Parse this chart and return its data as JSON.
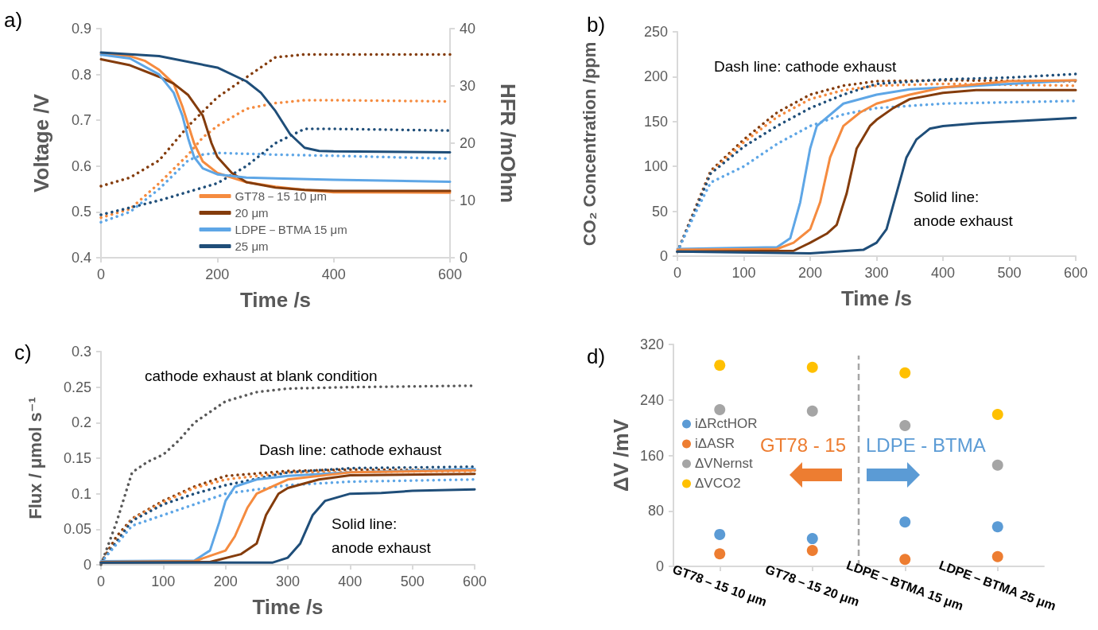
{
  "chart_data": [
    {
      "type": "line",
      "title": "a)",
      "xlabel": "Time /s",
      "ylabel": "Voltage /V",
      "y2label": "HFR /mOhm",
      "xlim": [
        0,
        600
      ],
      "xticks": [
        0,
        200,
        400,
        600
      ],
      "ylim": [
        0.4,
        0.9
      ],
      "yticks": [
        0.4,
        0.5,
        0.6,
        0.7,
        0.8,
        0.9
      ],
      "y2lim": [
        0,
        40
      ],
      "y2ticks": [
        0,
        10,
        20,
        30,
        40
      ],
      "grid": false,
      "legend": "bottom",
      "series": [
        {
          "name": "GT78－15 10 μm",
          "color": "#f58b3f",
          "line_style": "solid",
          "x": [
            0,
            50,
            75,
            100,
            125,
            140,
            150,
            160,
            175,
            200,
            225,
            250,
            300,
            350,
            400,
            600
          ],
          "values": [
            0.845,
            0.84,
            0.83,
            0.81,
            0.78,
            0.73,
            0.69,
            0.65,
            0.61,
            0.585,
            0.575,
            0.565,
            0.555,
            0.548,
            0.543,
            0.542
          ]
        },
        {
          "name": "20 μm",
          "color": "#843c0c",
          "line_style": "solid",
          "x": [
            0,
            50,
            100,
            125,
            150,
            175,
            190,
            200,
            225,
            250,
            300,
            350,
            400,
            600
          ],
          "values": [
            0.833,
            0.82,
            0.795,
            0.78,
            0.755,
            0.71,
            0.65,
            0.62,
            0.585,
            0.565,
            0.553,
            0.548,
            0.546,
            0.546
          ]
        },
        {
          "name": "LDPE－BTMA 15 μm",
          "color": "#5ea6e6",
          "line_style": "solid",
          "x": [
            0,
            50,
            100,
            125,
            140,
            150,
            160,
            175,
            200,
            250,
            300,
            400,
            600
          ],
          "values": [
            0.843,
            0.835,
            0.8,
            0.76,
            0.71,
            0.66,
            0.62,
            0.595,
            0.582,
            0.575,
            0.573,
            0.57,
            0.566
          ]
        },
        {
          "name": "25 μm",
          "color": "#1f4e79",
          "line_style": "solid",
          "x": [
            0,
            100,
            200,
            250,
            275,
            300,
            325,
            350,
            375,
            400,
            600
          ],
          "values": [
            0.848,
            0.84,
            0.815,
            0.785,
            0.76,
            0.72,
            0.67,
            0.64,
            0.633,
            0.632,
            0.63
          ]
        },
        {
          "color": "#843c0c",
          "line_style": "dotted",
          "axis": "y2",
          "x": [
            0,
            50,
            100,
            150,
            200,
            250,
            300,
            350,
            400,
            600
          ],
          "values": [
            12.5,
            14,
            17,
            23,
            28,
            31.5,
            35,
            35.5,
            35.5,
            35.5
          ]
        },
        {
          "color": "#f58b3f",
          "line_style": "dotted",
          "axis": "y2",
          "x": [
            0,
            50,
            100,
            150,
            175,
            200,
            250,
            300,
            350,
            400,
            600
          ],
          "values": [
            7,
            8.5,
            13,
            18,
            21,
            23,
            26,
            27,
            27.5,
            27.5,
            27.3
          ]
        },
        {
          "color": "#5ea6e6",
          "line_style": "dotted",
          "axis": "y2",
          "x": [
            0,
            50,
            100,
            150,
            175,
            200,
            300,
            400,
            600
          ],
          "values": [
            6.2,
            8,
            12,
            17,
            18,
            18.3,
            18,
            17.8,
            17.3
          ]
        },
        {
          "color": "#1f4e79",
          "line_style": "dotted",
          "axis": "y2",
          "x": [
            0,
            100,
            200,
            250,
            300,
            350,
            400,
            600
          ],
          "values": [
            7.5,
            10,
            13,
            16,
            20,
            22.5,
            22.5,
            22.2
          ]
        }
      ]
    },
    {
      "type": "line",
      "title": "b)",
      "xlabel": "Time /s",
      "ylabel": "CO₂ Concentration /ppm",
      "xlim": [
        0,
        600
      ],
      "xticks": [
        0,
        100,
        200,
        300,
        400,
        500,
        600
      ],
      "ylim": [
        0,
        250
      ],
      "yticks": [
        0,
        50,
        100,
        150,
        200,
        250
      ],
      "grid": false,
      "annotations": [
        "Dash line: cathode exhaust",
        "Solid line: anode exhaust"
      ],
      "series": [
        {
          "color": "#843c0c",
          "line_style": "dotted",
          "x": [
            0,
            25,
            50,
            100,
            150,
            200,
            250,
            300,
            400,
            600
          ],
          "values": [
            5,
            50,
            95,
            130,
            160,
            180,
            190,
            195,
            196,
            195
          ]
        },
        {
          "color": "#f58b3f",
          "line_style": "dotted",
          "x": [
            0,
            25,
            50,
            100,
            150,
            200,
            250,
            300,
            400,
            600
          ],
          "values": [
            5,
            48,
            93,
            127,
            155,
            175,
            185,
            190,
            192,
            190
          ]
        },
        {
          "color": "#1f4e79",
          "line_style": "dotted",
          "x": [
            0,
            25,
            50,
            100,
            150,
            200,
            250,
            300,
            400,
            500,
            600
          ],
          "values": [
            5,
            48,
            92,
            122,
            145,
            165,
            180,
            192,
            197,
            199,
            203
          ]
        },
        {
          "color": "#5ea6e6",
          "line_style": "dotted",
          "x": [
            0,
            25,
            50,
            100,
            150,
            200,
            250,
            300,
            400,
            600
          ],
          "values": [
            5,
            45,
            82,
            100,
            125,
            145,
            158,
            165,
            170,
            173
          ]
        },
        {
          "color": "#5ea6e6",
          "line_style": "solid",
          "x": [
            0,
            150,
            170,
            185,
            200,
            210,
            250,
            300,
            350,
            400,
            500,
            600
          ],
          "values": [
            8,
            10,
            20,
            60,
            120,
            145,
            170,
            180,
            186,
            188,
            192,
            196
          ]
        },
        {
          "color": "#f58b3f",
          "line_style": "solid",
          "x": [
            0,
            150,
            175,
            200,
            215,
            230,
            250,
            275,
            300,
            350,
            400,
            500,
            600
          ],
          "values": [
            7,
            8,
            15,
            30,
            60,
            110,
            145,
            160,
            170,
            180,
            188,
            195,
            196
          ]
        },
        {
          "color": "#843c0c",
          "line_style": "solid",
          "x": [
            0,
            175,
            200,
            225,
            240,
            255,
            270,
            290,
            300,
            325,
            350,
            400,
            450,
            600
          ],
          "values": [
            5,
            6,
            15,
            25,
            35,
            70,
            120,
            145,
            152,
            165,
            175,
            182,
            185,
            185
          ]
        },
        {
          "color": "#1f4e79",
          "line_style": "solid",
          "x": [
            0,
            200,
            280,
            300,
            315,
            330,
            345,
            360,
            380,
            400,
            450,
            500,
            600
          ],
          "values": [
            5,
            3,
            7,
            15,
            30,
            70,
            110,
            130,
            142,
            145,
            148,
            150,
            154
          ]
        }
      ]
    },
    {
      "type": "line",
      "title": "c)",
      "xlabel": "Time /s",
      "ylabel": "Flux / μmol s⁻¹",
      "xlim": [
        0,
        600
      ],
      "xticks": [
        0,
        100,
        200,
        300,
        400,
        500,
        600
      ],
      "ylim": [
        0,
        0.3
      ],
      "yticks": [
        0,
        0.05,
        0.1,
        0.15,
        0.2,
        0.25,
        0.3
      ],
      "grid": false,
      "annotations": [
        "cathode exhaust at blank condition",
        "Dash line: cathode exhaust",
        "Solid line: anode exhaust"
      ],
      "series": [
        {
          "color": "#595959",
          "line_style": "dotted",
          "x": [
            0,
            25,
            50,
            75,
            100,
            125,
            150,
            200,
            250,
            300,
            400,
            600
          ],
          "values": [
            0,
            0.06,
            0.13,
            0.145,
            0.155,
            0.175,
            0.2,
            0.23,
            0.243,
            0.248,
            0.25,
            0.252
          ]
        },
        {
          "color": "#843c0c",
          "line_style": "dotted",
          "x": [
            0,
            25,
            50,
            100,
            150,
            200,
            300,
            400,
            600
          ],
          "values": [
            0.003,
            0.04,
            0.065,
            0.09,
            0.11,
            0.125,
            0.132,
            0.134,
            0.133
          ]
        },
        {
          "color": "#f58b3f",
          "line_style": "dotted",
          "x": [
            0,
            50,
            100,
            150,
            200,
            300,
            600
          ],
          "values": [
            0.003,
            0.064,
            0.088,
            0.108,
            0.12,
            0.13,
            0.132
          ]
        },
        {
          "color": "#1f4e79",
          "line_style": "dotted",
          "x": [
            0,
            50,
            100,
            150,
            200,
            300,
            400,
            600
          ],
          "values": [
            0.003,
            0.062,
            0.085,
            0.1,
            0.112,
            0.13,
            0.136,
            0.138
          ]
        },
        {
          "color": "#5ea6e6",
          "line_style": "dotted",
          "x": [
            0,
            50,
            100,
            150,
            200,
            300,
            400,
            600
          ],
          "values": [
            0.003,
            0.055,
            0.07,
            0.085,
            0.1,
            0.112,
            0.117,
            0.12
          ]
        },
        {
          "color": "#5ea6e6",
          "line_style": "solid",
          "x": [
            0,
            150,
            175,
            190,
            200,
            215,
            250,
            300,
            400,
            600
          ],
          "values": [
            0.005,
            0.006,
            0.02,
            0.06,
            0.09,
            0.11,
            0.12,
            0.125,
            0.13,
            0.135
          ]
        },
        {
          "color": "#f58b3f",
          "line_style": "solid",
          "x": [
            0,
            150,
            200,
            215,
            235,
            250,
            275,
            300,
            400,
            600
          ],
          "values": [
            0.004,
            0.005,
            0.02,
            0.04,
            0.08,
            0.1,
            0.11,
            0.12,
            0.13,
            0.133
          ]
        },
        {
          "color": "#843c0c",
          "line_style": "solid",
          "x": [
            0,
            175,
            225,
            250,
            265,
            285,
            300,
            350,
            400,
            600
          ],
          "values": [
            0.003,
            0.004,
            0.015,
            0.03,
            0.07,
            0.1,
            0.108,
            0.12,
            0.126,
            0.128
          ]
        },
        {
          "color": "#1f4e79",
          "line_style": "solid",
          "x": [
            0,
            275,
            300,
            320,
            340,
            360,
            400,
            450,
            500,
            600
          ],
          "values": [
            0.003,
            0.003,
            0.01,
            0.03,
            0.07,
            0.09,
            0.1,
            0.101,
            0.104,
            0.106
          ]
        }
      ]
    },
    {
      "type": "scatter",
      "title": "d)",
      "ylabel": "ΔV /mV",
      "marker": "circle",
      "categories": [
        "GT78－15 10 μm",
        "GT78－15 20 μm",
        "LDPE－BTMA 15 μm",
        "LDPE－BTMA 25 μm"
      ],
      "ylim": [
        0,
        320
      ],
      "yticks": [
        0,
        80,
        160,
        240,
        320
      ],
      "grid": false,
      "legend": "left",
      "annotations": [
        "GT78 - 15",
        "LDPE - BTMA"
      ],
      "series": [
        {
          "name": "iΔRctHOR",
          "color": "#5b9bd5",
          "values": [
            46,
            40,
            64,
            57
          ]
        },
        {
          "name": "iΔASR",
          "color": "#ed7d31",
          "values": [
            18,
            23,
            10,
            14
          ]
        },
        {
          "name": "ΔVNernst",
          "color": "#a5a5a5",
          "values": [
            226,
            224,
            203,
            146
          ]
        },
        {
          "name": "ΔVCO2",
          "color": "#ffc000",
          "values": [
            290,
            287,
            279,
            219
          ]
        }
      ]
    }
  ]
}
